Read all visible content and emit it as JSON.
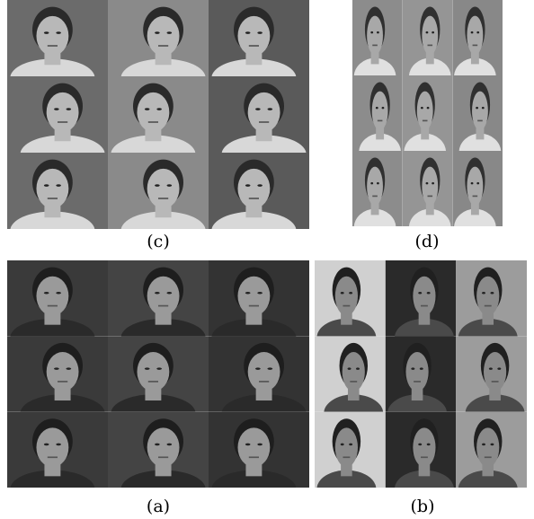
{
  "panels": [
    {
      "label": "(c)"
    },
    {
      "label": "(d)"
    },
    {
      "label": "(a)"
    },
    {
      "label": "(b)"
    }
  ]
}
